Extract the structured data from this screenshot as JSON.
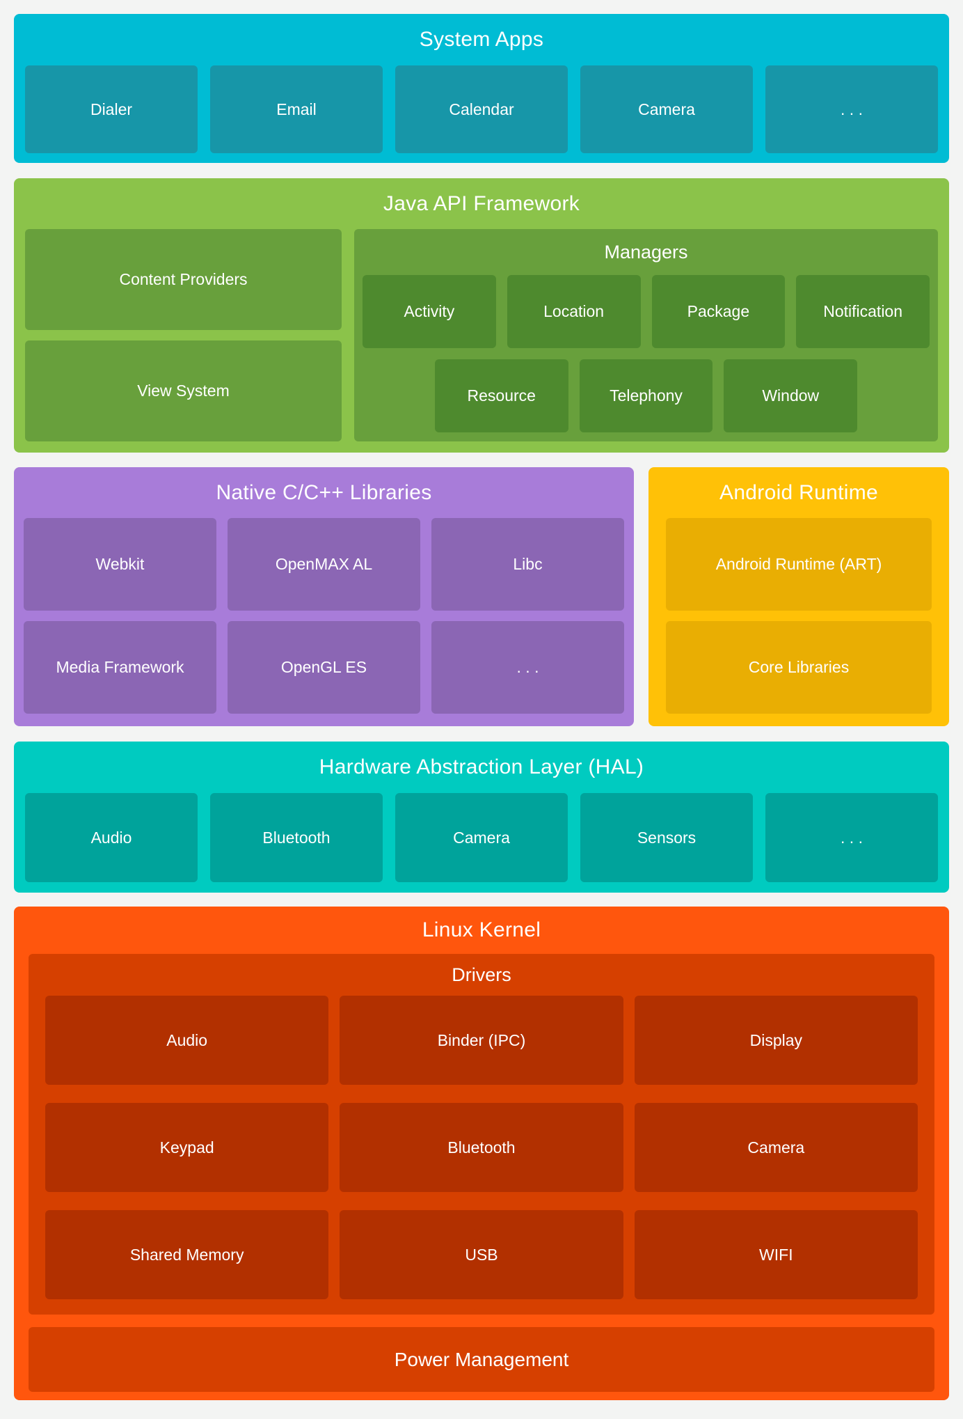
{
  "colors": {
    "page_background": "#f3f4f3",
    "text": "#ffffff",
    "system_apps_bg": "#00bcd4",
    "system_apps_box": "#1796a8",
    "java_api_bg": "#8bc34a",
    "java_api_box": "#68a03c",
    "managers_inner_box": "#4e8a2e",
    "native_libs_bg": "#a87cd9",
    "native_libs_box": "#8b66b4",
    "android_runtime_bg": "#ffc107",
    "android_runtime_box": "#e9ae03",
    "hal_bg": "#00cbc0",
    "hal_box": "#00a39b",
    "kernel_bg": "#ff560d",
    "kernel_container": "#d64000",
    "kernel_box": "#b23000"
  },
  "system_apps": {
    "title": "System Apps",
    "items": [
      "Dialer",
      "Email",
      "Calendar",
      "Camera",
      ". . ."
    ]
  },
  "java_api": {
    "title": "Java API Framework",
    "left_items": [
      "Content Providers",
      "View System"
    ],
    "managers": {
      "title": "Managers",
      "row1": [
        "Activity",
        "Location",
        "Package",
        "Notification"
      ],
      "row2": [
        "Resource",
        "Telephony",
        "Window"
      ]
    }
  },
  "native_libs": {
    "title": "Native C/C++ Libraries",
    "items": [
      "Webkit",
      "OpenMAX AL",
      "Libc",
      "Media Framework",
      "OpenGL ES",
      ". . ."
    ]
  },
  "android_runtime": {
    "title": "Android Runtime",
    "items": [
      "Android Runtime (ART)",
      "Core Libraries"
    ]
  },
  "hal": {
    "title": "Hardware Abstraction Layer (HAL)",
    "items": [
      "Audio",
      "Bluetooth",
      "Camera",
      "Sensors",
      ". . ."
    ]
  },
  "linux_kernel": {
    "title": "Linux Kernel",
    "drivers": {
      "title": "Drivers",
      "items": [
        "Audio",
        "Binder (IPC)",
        "Display",
        "Keypad",
        "Bluetooth",
        "Camera",
        "Shared Memory",
        "USB",
        "WIFI"
      ]
    },
    "power": "Power Management"
  }
}
